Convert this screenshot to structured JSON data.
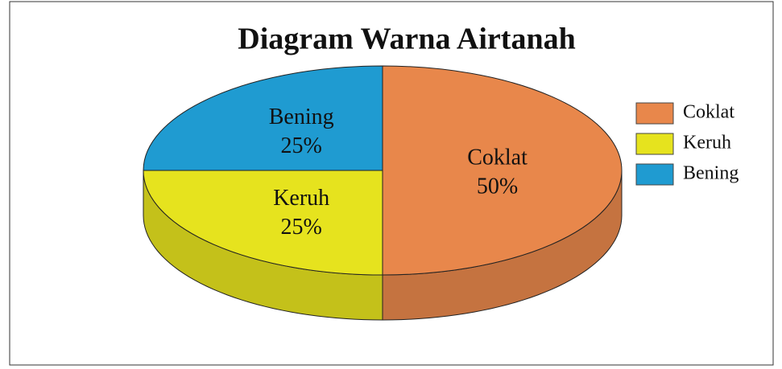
{
  "chart_data": {
    "type": "pie",
    "title": "Diagram Warna Airtanah",
    "categories": [
      "Coklat",
      "Keruh",
      "Bening"
    ],
    "values": [
      50,
      25,
      25
    ],
    "value_labels": [
      "50%",
      "25%",
      "25%"
    ],
    "colors": [
      "#e8874b",
      "#e6e31e",
      "#1f9bd1"
    ],
    "legend": "right"
  }
}
